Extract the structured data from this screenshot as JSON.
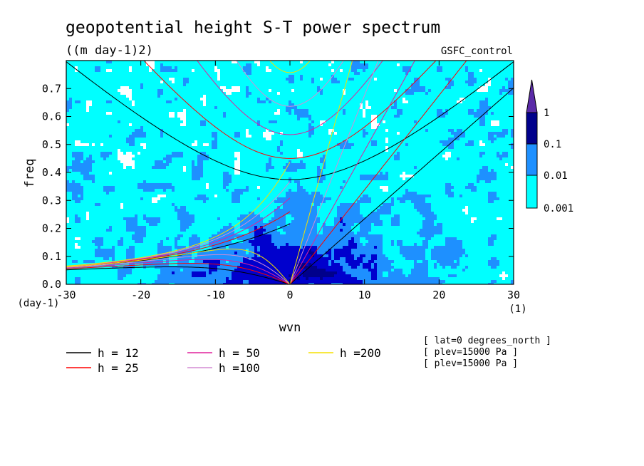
{
  "chart_data": {
    "type": "heatmap",
    "title": "geopotential height S-T power spectrum",
    "units": "((m day-1)2)",
    "dataset": "GSFC_control",
    "xlabel": "wvn",
    "ylabel": "freq",
    "x_unit": "(1)",
    "y_unit": "(day-1)",
    "xlim": [
      -30,
      30
    ],
    "ylim": [
      0,
      0.8
    ],
    "x_ticks": [
      -30,
      -20,
      -10,
      0,
      10,
      20,
      30
    ],
    "y_ticks": [
      0.0,
      0.1,
      0.2,
      0.3,
      0.4,
      0.5,
      0.6,
      0.7
    ],
    "x_tick_labels": [
      "-30",
      "-20",
      "-10",
      "0",
      "10",
      "20",
      "30"
    ],
    "y_tick_labels": [
      "0.0",
      "0.1",
      "0.2",
      "0.3",
      "0.4",
      "0.5",
      "0.6",
      "0.7"
    ],
    "contour_levels": [
      0.001,
      0.01,
      0.1,
      1
    ],
    "colorbar_labels": [
      "1",
      "0.1",
      "0.01",
      "0.001"
    ],
    "colors": {
      "below": "#ffffff",
      "level1": "#00ffff",
      "level2": "#1e90ff",
      "level3": "#0000cd",
      "level4": "#00008b",
      "above": "#5b2aa8"
    },
    "dispersion_curves": [
      {
        "label": "h = 12",
        "h": 12,
        "color": "#000000"
      },
      {
        "label": "h = 25",
        "h": 25,
        "color": "#ff0000"
      },
      {
        "label": "h = 50",
        "h": 50,
        "color": "#e0209c"
      },
      {
        "label": "h =100",
        "h": 100,
        "color": "#d48cd4"
      },
      {
        "label": "h =200",
        "h": 200,
        "color": "#f5e000"
      }
    ],
    "metadata": [
      "[ lat=0 degrees_north ]",
      "[ plev=15000 Pa ]",
      "[ plev=15000 Pa ]"
    ]
  }
}
